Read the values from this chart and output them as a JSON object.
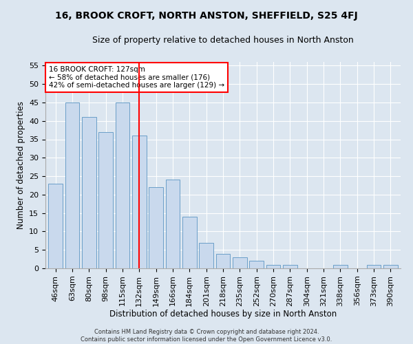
{
  "title": "16, BROOK CROFT, NORTH ANSTON, SHEFFIELD, S25 4FJ",
  "subtitle": "Size of property relative to detached houses in North Anston",
  "xlabel": "Distribution of detached houses by size in North Anston",
  "ylabel": "Number of detached properties",
  "footer_line1": "Contains HM Land Registry data © Crown copyright and database right 2024.",
  "footer_line2": "Contains public sector information licensed under the Open Government Licence v3.0.",
  "categories": [
    "46sqm",
    "63sqm",
    "80sqm",
    "98sqm",
    "115sqm",
    "132sqm",
    "149sqm",
    "166sqm",
    "184sqm",
    "201sqm",
    "218sqm",
    "235sqm",
    "252sqm",
    "270sqm",
    "287sqm",
    "304sqm",
    "321sqm",
    "338sqm",
    "356sqm",
    "373sqm",
    "390sqm"
  ],
  "values": [
    23,
    45,
    41,
    37,
    45,
    36,
    22,
    24,
    14,
    7,
    4,
    3,
    2,
    1,
    1,
    0,
    0,
    1,
    0,
    1,
    1
  ],
  "bar_color": "#c9d9ed",
  "bar_edge_color": "#6a9fc8",
  "annotation_text": "16 BROOK CROFT: 127sqm\n← 58% of detached houses are smaller (176)\n42% of semi-detached houses are larger (129) →",
  "annotation_box_color": "white",
  "annotation_box_edge_color": "red",
  "vline_x": 5.0,
  "vline_color": "red",
  "ylim": [
    0,
    56
  ],
  "yticks": [
    0,
    5,
    10,
    15,
    20,
    25,
    30,
    35,
    40,
    45,
    50,
    55
  ],
  "bg_color": "#dce6f0",
  "plot_bg_color": "#dce6f0",
  "title_fontsize": 10,
  "subtitle_fontsize": 9,
  "xlabel_fontsize": 8.5,
  "ylabel_fontsize": 8.5,
  "tick_fontsize": 8,
  "annot_fontsize": 7.5
}
